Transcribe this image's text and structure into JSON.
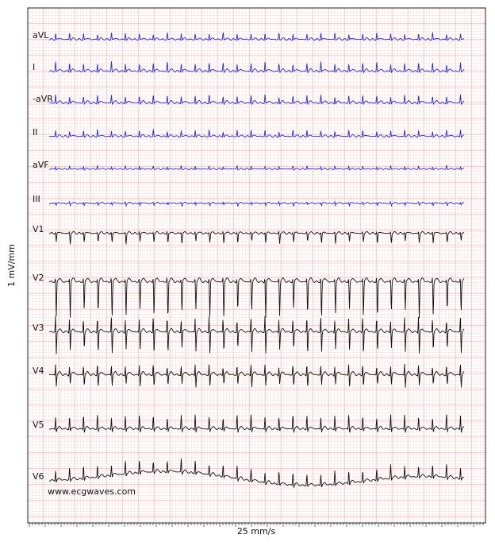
{
  "leads": [
    "aVL",
    "I",
    "-aVR",
    "II",
    "aVF",
    "III",
    "V1",
    "V2",
    "V3",
    "V4",
    "V5",
    "V6"
  ],
  "x_label": "25 mm/s",
  "y_label": "1 mV/mm",
  "watermark": "www.ecgwaves.com"
}
